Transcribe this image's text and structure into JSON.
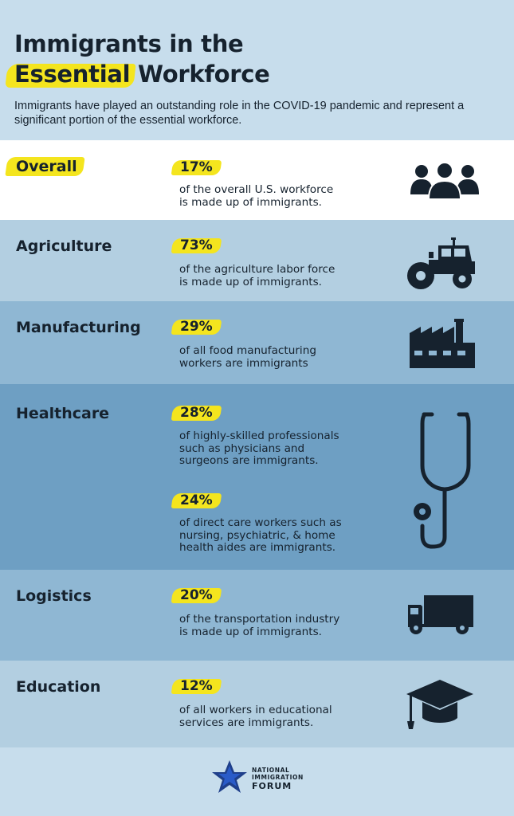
{
  "header": {
    "title_line1": "Immigrants in the",
    "title_highlight": "Essential",
    "title_rest": " Workforce",
    "subtitle": "Immigrants have played an outstanding role in the COVID-19 pandemic and represent a significant portion of the essential workforce."
  },
  "sections": {
    "overall": {
      "name": "Overall",
      "pct": "17%",
      "desc": "of the overall U.S. workforce\nis made up of immigrants.",
      "icon": "people-group-icon",
      "bg": "#ffffff"
    },
    "agriculture": {
      "name": "Agriculture",
      "pct": "73%",
      "desc": "of the agriculture labor force\nis made up of immigrants.",
      "icon": "tractor-icon",
      "bg": "#b3cfe1"
    },
    "manufacturing": {
      "name": "Manufacturing",
      "pct": "29%",
      "desc": "of all food manufacturing\nworkers are immigrants",
      "icon": "factory-icon",
      "bg": "#8fb7d3"
    },
    "healthcare": {
      "name": "Healthcare",
      "pct1": "28%",
      "desc1": "of highly-skilled professionals\nsuch as physicians and\nsurgeons are immigrants.",
      "pct2": "24%",
      "desc2": "of direct care workers such as\nnursing, psychiatric, & home\nhealth aides are immigrants.",
      "icon": "stethoscope-icon",
      "bg": "#6e9fc3"
    },
    "logistics": {
      "name": "Logistics",
      "pct": "20%",
      "desc": "of the transportation industry\nis made up of immigrants.",
      "icon": "truck-icon",
      "bg": "#8fb7d3"
    },
    "education": {
      "name": "Education",
      "pct": "12%",
      "desc": "of all workers in educational\nservices are immigrants.",
      "icon": "graduation-cap-icon",
      "bg": "#b3cfe1"
    }
  },
  "footer": {
    "logo_line1": "NATIONAL",
    "logo_line2": "IMMIGRATION",
    "logo_line3": "FORUM",
    "icon": "star-logo-icon"
  },
  "colors": {
    "highlight": "#f4e51e",
    "ink": "#16222e",
    "header_bg": "#c7ddec"
  }
}
